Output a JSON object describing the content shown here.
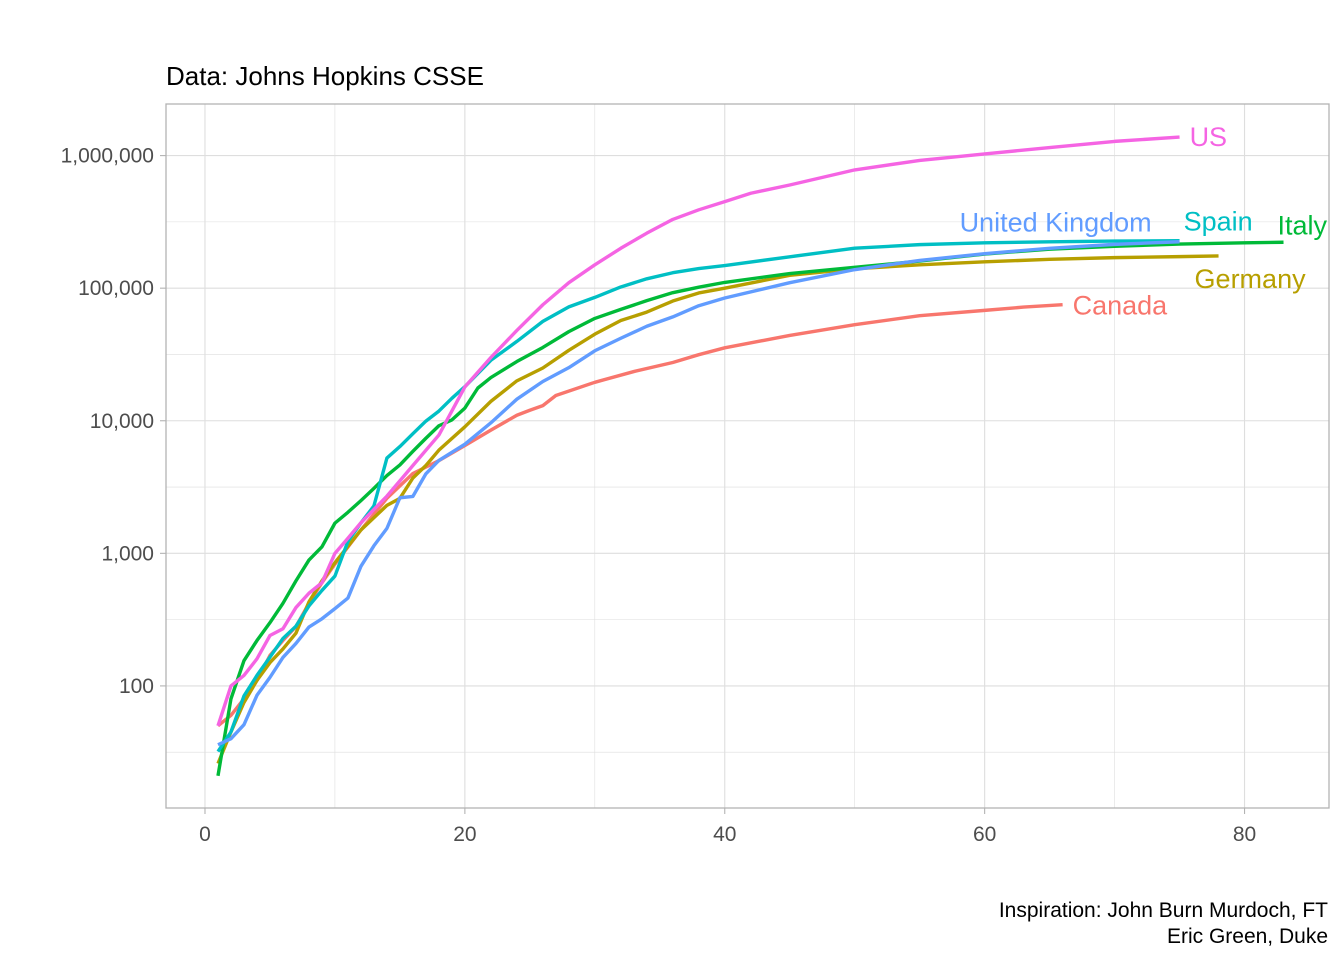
{
  "chart_data": {
    "type": "line",
    "title": "Data: Johns Hopkins CSSE",
    "caption_lines": [
      "Inspiration: John Burn Murdoch, FT",
      "Eric Green, Duke"
    ],
    "xlabel": "",
    "ylabel": "",
    "x_scale": "linear",
    "y_scale": "log10",
    "xlim": [
      -3,
      86.5
    ],
    "ylim": [
      12,
      2450000
    ],
    "x_ticks": [
      0,
      20,
      40,
      60,
      80
    ],
    "x_tick_labels": [
      "0",
      "20",
      "40",
      "60",
      "80"
    ],
    "y_ticks": [
      100,
      1000,
      10000,
      100000,
      1000000
    ],
    "y_tick_labels": [
      "100",
      "1,000",
      "10,000",
      "100,000",
      "1,000,000"
    ],
    "grid": true,
    "legend": "none (direct labels at line ends)",
    "series": [
      {
        "name": "Canada",
        "color": "#F8766D",
        "x": [
          1,
          2,
          3,
          4,
          5,
          6,
          7,
          8,
          9,
          10,
          12,
          14,
          16,
          18,
          20,
          22,
          24,
          25,
          26,
          27,
          30,
          33,
          36,
          38,
          40,
          45,
          50,
          55,
          60,
          63,
          66
        ],
        "y": [
          50,
          60,
          80,
          110,
          170,
          220,
          280,
          420,
          600,
          830,
          1500,
          2600,
          4000,
          5000,
          6500,
          8500,
          11000,
          12000,
          13000,
          15500,
          19500,
          23500,
          27500,
          31500,
          35500,
          44000,
          53000,
          62000,
          68000,
          72000,
          75000
        ]
      },
      {
        "name": "Germany",
        "color": "#B79F00",
        "x": [
          1,
          2,
          3,
          4,
          5,
          6,
          7,
          8,
          9,
          10,
          12,
          14,
          15,
          16,
          17,
          18,
          20,
          22,
          24,
          26,
          28,
          30,
          32,
          34,
          36,
          38,
          40,
          45,
          50,
          55,
          60,
          65,
          70,
          75,
          78
        ],
        "y": [
          26,
          45,
          75,
          110,
          150,
          190,
          250,
          430,
          620,
          850,
          1500,
          2300,
          2600,
          3700,
          4600,
          6000,
          9000,
          14000,
          20000,
          25000,
          34000,
          45000,
          57000,
          66000,
          80000,
          92000,
          100000,
          125000,
          140000,
          150000,
          158000,
          165000,
          170000,
          173000,
          175000
        ]
      },
      {
        "name": "Italy",
        "color": "#00BA38",
        "x": [
          1,
          2,
          3,
          4,
          5,
          6,
          7,
          8,
          9,
          10,
          11,
          12,
          13,
          14,
          15,
          16,
          17,
          18,
          19,
          20,
          21,
          22,
          24,
          26,
          28,
          30,
          32,
          34,
          36,
          38,
          40,
          45,
          50,
          55,
          60,
          65,
          70,
          75,
          80,
          83
        ],
        "y": [
          21,
          80,
          155,
          220,
          300,
          420,
          620,
          890,
          1120,
          1690,
          2040,
          2500,
          3090,
          3860,
          4640,
          5880,
          7380,
          9170,
          10150,
          12460,
          17660,
          21160,
          27980,
          35710,
          47020,
          59140,
          69180,
          80540,
          92470,
          101700,
          110600,
          128900,
          143600,
          160000,
          181000,
          197000,
          207000,
          215000,
          220000,
          222000
        ]
      },
      {
        "name": "Spain",
        "color": "#00BFC4",
        "x": [
          1,
          2,
          3,
          4,
          5,
          6,
          7,
          8,
          9,
          10,
          11,
          12,
          13,
          14,
          15,
          16,
          17,
          18,
          19,
          20,
          22,
          24,
          26,
          28,
          30,
          32,
          34,
          36,
          38,
          40,
          45,
          50,
          55,
          60,
          65,
          70,
          75
        ],
        "y": [
          32,
          45,
          84,
          120,
          165,
          228,
          282,
          401,
          525,
          674,
          1231,
          1695,
          2277,
          5232,
          6391,
          7988,
          9942,
          11826,
          14769,
          18077,
          28572,
          39673,
          56188,
          72248,
          85195,
          102136,
          117710,
          130759,
          140510,
          148220,
          172541,
          200210,
          213024,
          219764,
          223759,
          226629,
          228030
        ]
      },
      {
        "name": "United Kingdom",
        "color": "#619CFF",
        "x": [
          1,
          2,
          3,
          4,
          5,
          6,
          7,
          8,
          9,
          10,
          11,
          12,
          13,
          14,
          15,
          16,
          17,
          18,
          20,
          22,
          24,
          26,
          28,
          30,
          32,
          34,
          36,
          38,
          40,
          45,
          50,
          55,
          60,
          65,
          70,
          75
        ],
        "y": [
          36,
          40,
          51,
          85,
          116,
          164,
          209,
          278,
          321,
          383,
          460,
          798,
          1140,
          1543,
          2626,
          2689,
          3983,
          5018,
          6650,
          9640,
          14543,
          19780,
          25150,
          33718,
          41903,
          51608,
          60733,
          73758,
          84279,
          110000,
          138000,
          162000,
          182000,
          200000,
          214000,
          224000
        ]
      },
      {
        "name": "US",
        "color": "#F564E3",
        "x": [
          1,
          2,
          3,
          4,
          5,
          6,
          7,
          8,
          9,
          10,
          11,
          12,
          14,
          16,
          18,
          20,
          22,
          24,
          26,
          28,
          30,
          32,
          34,
          36,
          38,
          40,
          42,
          45,
          50,
          55,
          60,
          65,
          70,
          75
        ],
        "y": [
          50,
          100,
          120,
          160,
          240,
          270,
          390,
          500,
          600,
          1000,
          1300,
          1700,
          2700,
          4600,
          7800,
          18000,
          30000,
          48000,
          75000,
          110000,
          150000,
          200000,
          260000,
          330000,
          390000,
          450000,
          520000,
          600000,
          780000,
          920000,
          1030000,
          1150000,
          1280000,
          1380000
        ]
      }
    ]
  }
}
